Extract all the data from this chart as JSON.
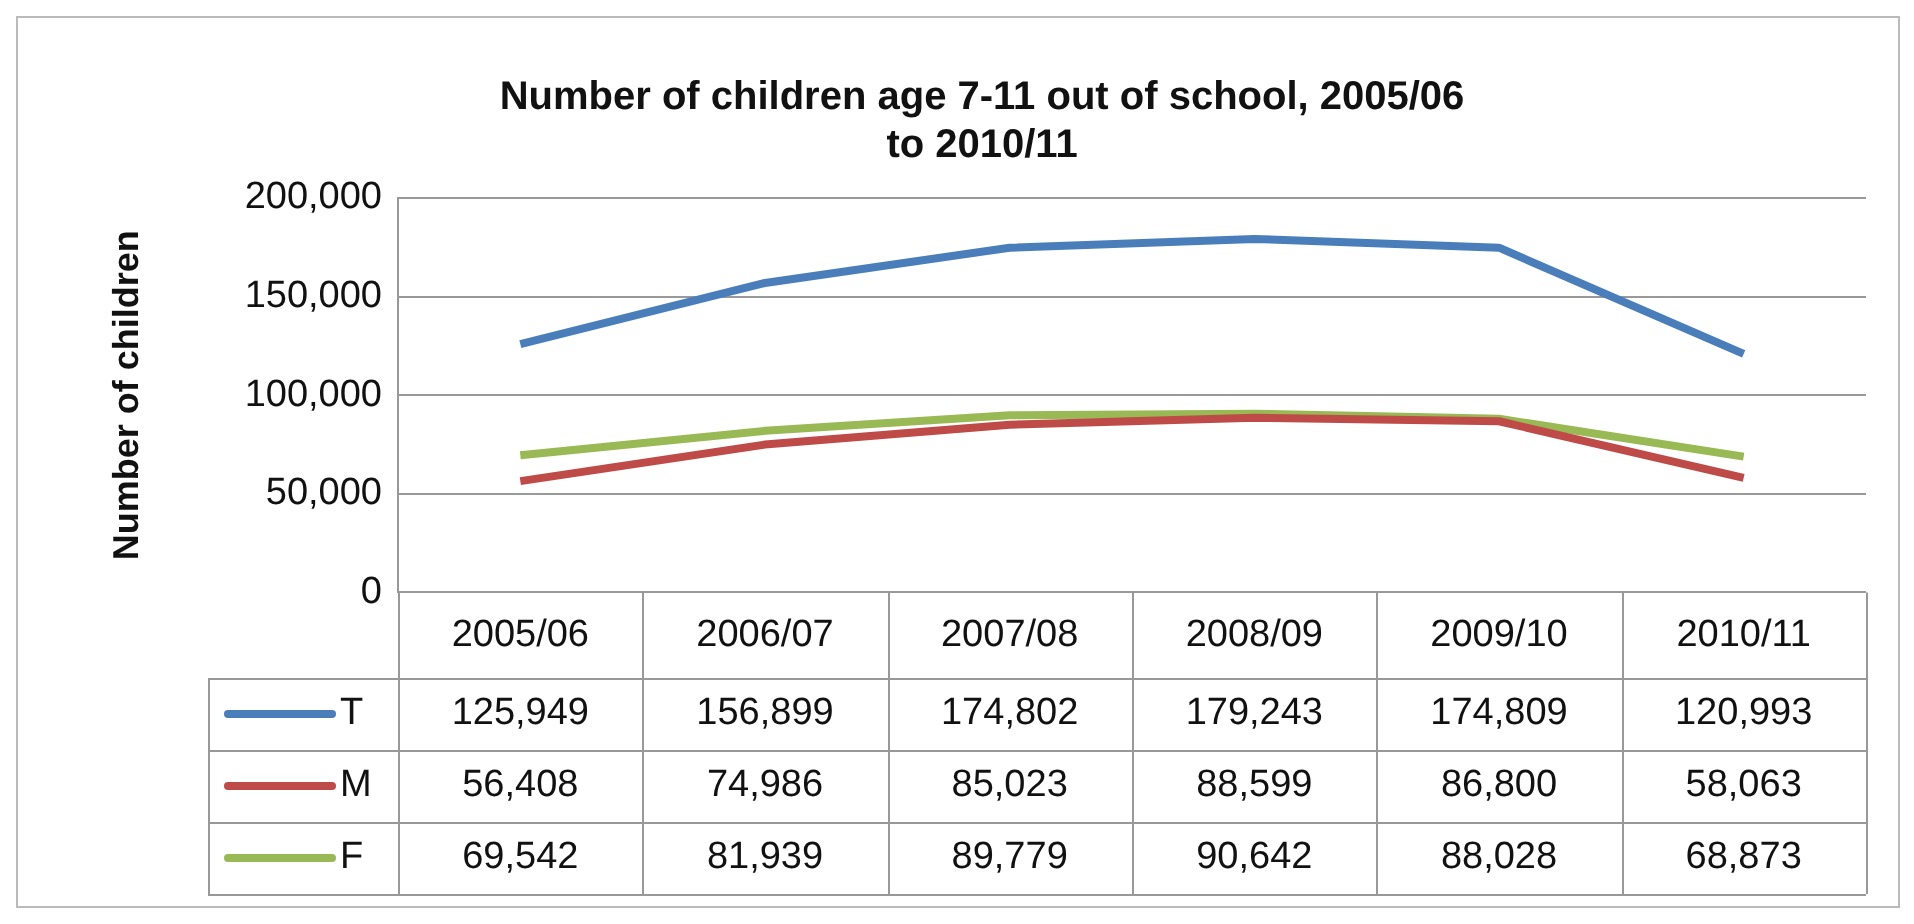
{
  "chart_data": {
    "type": "line",
    "title": "Number of children age 7-11 out of school, 2005/06 to 2010/11",
    "ylabel": "Number of children",
    "categories": [
      "2005/06",
      "2006/07",
      "2007/08",
      "2008/09",
      "2009/10",
      "2010/11"
    ],
    "series": [
      {
        "name": "T",
        "color": "#4a7ebb",
        "values": [
          125949,
          156899,
          174802,
          179243,
          174809,
          120993
        ],
        "value_labels": [
          "125,949",
          "156,899",
          "174,802",
          "179,243",
          "174,809",
          "120,993"
        ]
      },
      {
        "name": "M",
        "color": "#be4b48",
        "values": [
          56408,
          74986,
          85023,
          88599,
          86800,
          58063
        ],
        "value_labels": [
          "56,408",
          "74,986",
          "85,023",
          "88,599",
          "86,800",
          "58,063"
        ]
      },
      {
        "name": "F",
        "color": "#98b954",
        "values": [
          69542,
          81939,
          89779,
          90642,
          88028,
          68873
        ],
        "value_labels": [
          "69,542",
          "81,939",
          "89,779",
          "90,642",
          "88,028",
          "68,873"
        ]
      }
    ],
    "ylim": [
      0,
      200000
    ],
    "yticks": [
      0,
      {
        "value": 50000,
        "label": "50,000"
      },
      {
        "value": 100000,
        "label": "100,000"
      },
      {
        "value": 150000,
        "label": "150,000"
      },
      {
        "value": 200000,
        "label": "200,000"
      }
    ],
    "grid": "y",
    "legend": "bottom left",
    "marker": "none",
    "line_style": "solid"
  }
}
